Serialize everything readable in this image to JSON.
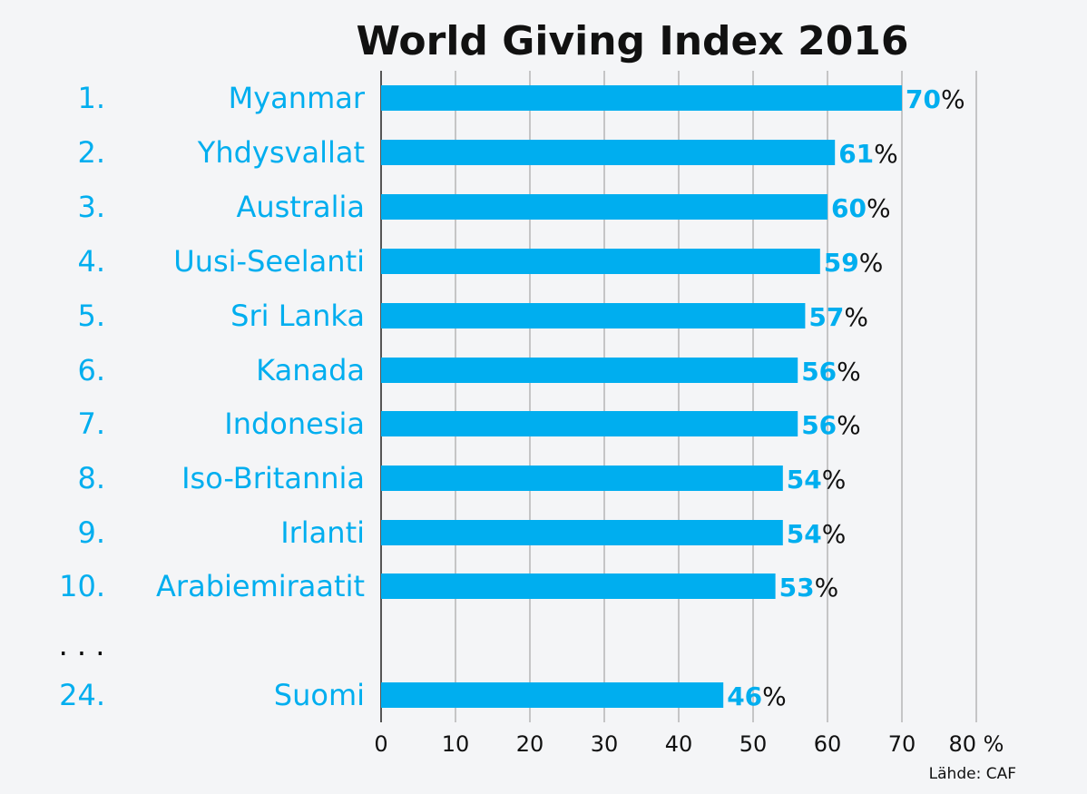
{
  "colors": {
    "bar": "#00aeef",
    "text_accent": "#00aeef",
    "grid": "#b5b5b5",
    "axis": "#555555"
  },
  "chart_data": {
    "type": "bar",
    "orientation": "horizontal",
    "title": "World Giving Index 2016",
    "unit_suffix": "%",
    "xlim": [
      0,
      80
    ],
    "x_ticks": [
      "0",
      "10",
      "20",
      "30",
      "40",
      "50",
      "60",
      "70",
      "80 %"
    ],
    "grid": true,
    "ellipsis": ". . .",
    "bars": [
      {
        "rank": "1.",
        "category": "Myanmar",
        "value": 70
      },
      {
        "rank": "2.",
        "category": "Yhdysvallat",
        "value": 61
      },
      {
        "rank": "3.",
        "category": "Australia",
        "value": 60
      },
      {
        "rank": "4.",
        "category": "Uusi-Seelanti",
        "value": 59
      },
      {
        "rank": "5.",
        "category": "Sri Lanka",
        "value": 57
      },
      {
        "rank": "6.",
        "category": "Kanada",
        "value": 56
      },
      {
        "rank": "7.",
        "category": "Indonesia",
        "value": 56
      },
      {
        "rank": "8.",
        "category": "Iso-Britannia",
        "value": 54
      },
      {
        "rank": "9.",
        "category": "Irlanti",
        "value": 54
      },
      {
        "rank": "10.",
        "category": "Arabiemiraatit",
        "value": 53
      },
      {
        "rank": "24.",
        "category": "Suomi",
        "value": 46
      }
    ],
    "source": "Lähde:  CAF"
  }
}
